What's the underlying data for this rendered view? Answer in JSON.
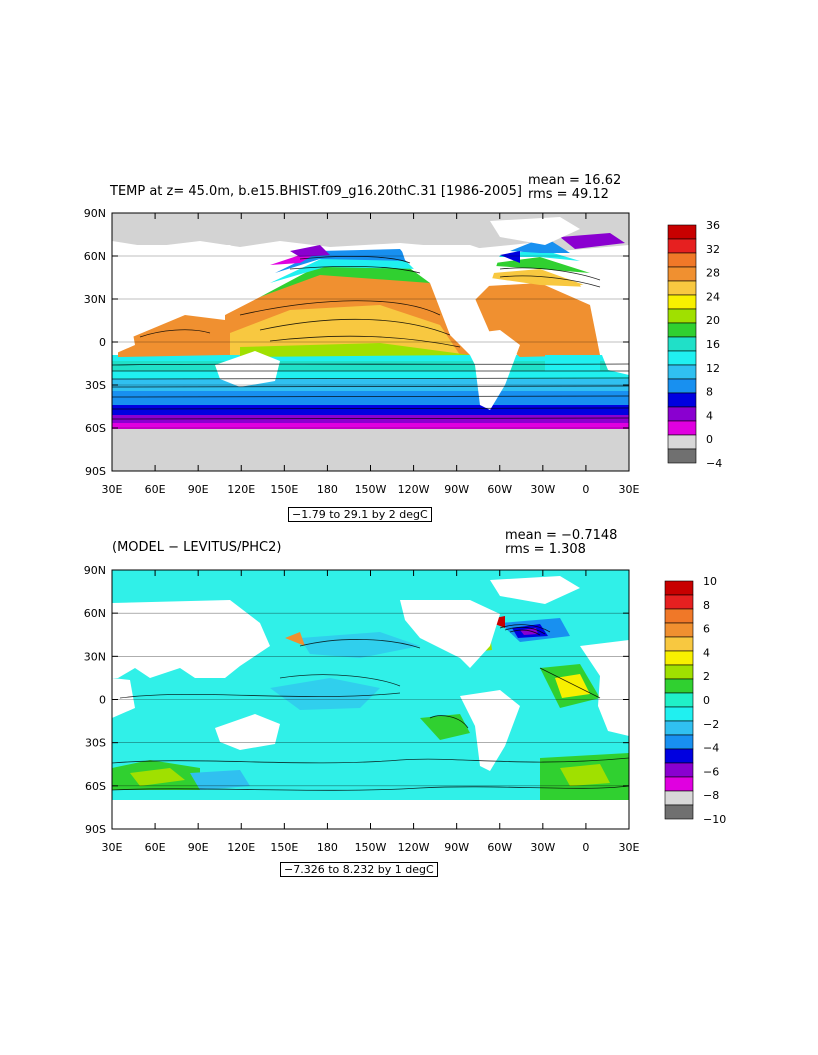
{
  "panels": [
    {
      "title": "TEMP at z=  45.0m, b.e15.BHIST.f09_g16.20thC.31 [1986-2005]",
      "mean": "mean = 16.62",
      "rms": "rms = 49.12",
      "range": "−1.79 to 29.1 by 2 degC",
      "colorbar_labels": [
        "36",
        "32",
        "28",
        "24",
        "20",
        "16",
        "12",
        "8",
        "4",
        "0",
        "−4"
      ],
      "colorbar_colors": [
        "#c80000",
        "#e62020",
        "#f07828",
        "#f09030",
        "#f8c840",
        "#f8f000",
        "#a0e000",
        "#30d030",
        "#20e0c8",
        "#20f0f0",
        "#30c0f0",
        "#1890f0",
        "#0000e0",
        "#8a00d0",
        "#e000e0",
        "#d8d8d8",
        "#707070"
      ]
    },
    {
      "title": "(MODEL − LEVITUS/PHC2)",
      "mean": "mean = −0.7148",
      "rms": "rms = 1.308",
      "range": "−7.326 to 8.232 by 1 degC",
      "colorbar_labels": [
        "10",
        "8",
        "6",
        "4",
        "2",
        "0",
        "−2",
        "−4",
        "−6",
        "−8",
        "−10"
      ],
      "colorbar_colors": [
        "#c80000",
        "#e62020",
        "#f07828",
        "#f09030",
        "#f8c840",
        "#f8f000",
        "#a0e000",
        "#30d030",
        "#20f0c8",
        "#20f0f0",
        "#30c0f0",
        "#1890f0",
        "#0000e0",
        "#8a00d0",
        "#e000e0",
        "#d8d8d8",
        "#707070"
      ]
    }
  ],
  "axes": {
    "lon_ticks": [
      "30E",
      "60E",
      "90E",
      "120E",
      "150E",
      "180",
      "150W",
      "120W",
      "90W",
      "60W",
      "30W",
      "0",
      "30E"
    ],
    "lat_ticks": [
      "90N",
      "60N",
      "30N",
      "0",
      "30S",
      "60S",
      "90S"
    ]
  },
  "colors": {
    "land": "#ffffff",
    "ice": "#d3d3d3",
    "warm_ocean": "#f0a030",
    "base_anomaly": "#30f0e8"
  }
}
